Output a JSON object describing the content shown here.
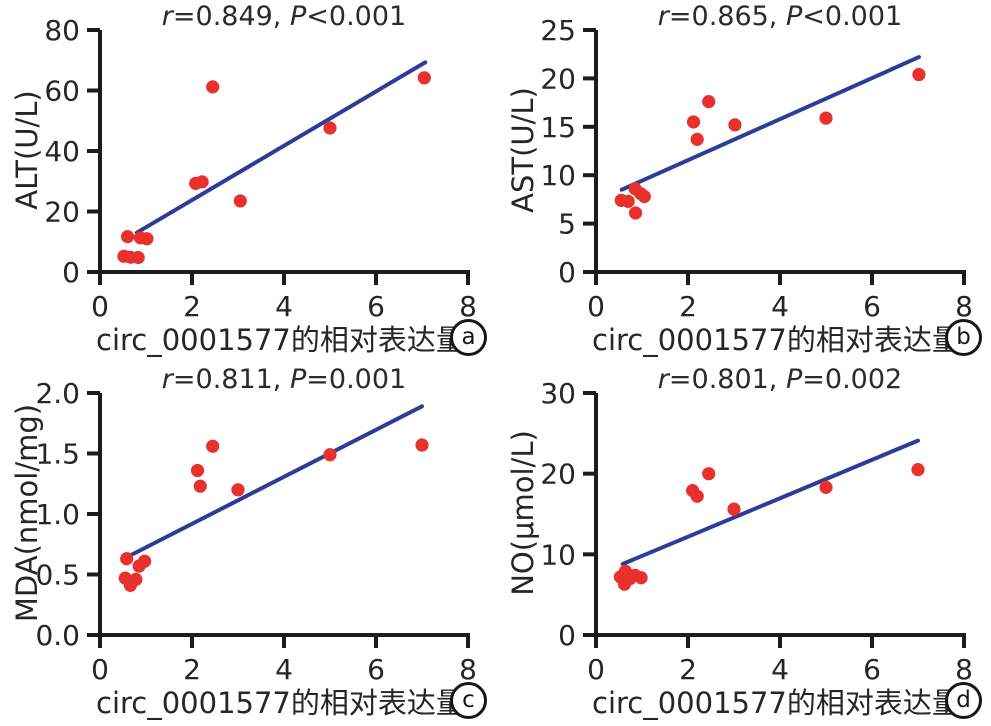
{
  "figure": {
    "background": "#ffffff",
    "x_axis_label_shared": "circ_0001577的相对表达量"
  },
  "colors": {
    "point": "#e8312d",
    "trend_line": "#2b3d98",
    "axis": "#1c1c1c",
    "text": "#262626"
  },
  "chart_data": [
    {
      "type": "scatter",
      "panel_label": "a",
      "title": {
        "var1": "r",
        "val1": "=0.849, ",
        "var2": "P",
        "val2": "<0.001"
      },
      "title_text": "r=0.849, P<0.001",
      "xlabel": "circ_0001577的相对表达量",
      "ylabel": "ALT(U/L)",
      "xlim": [
        0,
        8
      ],
      "ylim": [
        0,
        80
      ],
      "xticks": [
        "0",
        "2",
        "4",
        "6",
        "8"
      ],
      "yticks": [
        "0",
        "20",
        "40",
        "60",
        "80"
      ],
      "points": [
        [
          0.52,
          5.2
        ],
        [
          0.66,
          4.9
        ],
        [
          0.83,
          4.8
        ],
        [
          0.6,
          11.7
        ],
        [
          0.88,
          11.3
        ],
        [
          1.02,
          11.0
        ],
        [
          2.08,
          29.3
        ],
        [
          2.22,
          29.8
        ],
        [
          2.45,
          61.2
        ],
        [
          3.05,
          23.5
        ],
        [
          5.0,
          47.6
        ],
        [
          7.05,
          64.2
        ]
      ],
      "trendline": {
        "x1": 0.8,
        "y1": 13.0,
        "x2": 7.07,
        "y2": 69.3
      },
      "legend": "none",
      "grid": false
    },
    {
      "type": "scatter",
      "panel_label": "b",
      "title": {
        "var1": "r",
        "val1": "=0.865, ",
        "var2": "P",
        "val2": "<0.001"
      },
      "title_text": "r=0.865, P<0.001",
      "xlabel": "circ_0001577的相对表达量",
      "ylabel": "AST(U/L)",
      "xlim": [
        0,
        8
      ],
      "ylim": [
        0,
        25
      ],
      "xticks": [
        "0",
        "2",
        "4",
        "6",
        "8"
      ],
      "yticks": [
        "0",
        "5",
        "10",
        "15",
        "20",
        "25"
      ],
      "points": [
        [
          0.55,
          7.4
        ],
        [
          0.7,
          7.3
        ],
        [
          0.85,
          8.6
        ],
        [
          0.97,
          8.1
        ],
        [
          1.05,
          7.8
        ],
        [
          0.86,
          6.1
        ],
        [
          2.12,
          15.5
        ],
        [
          2.2,
          13.7
        ],
        [
          2.45,
          17.6
        ],
        [
          3.02,
          15.2
        ],
        [
          5.0,
          15.9
        ],
        [
          7.02,
          20.4
        ]
      ],
      "trendline": {
        "x1": 0.56,
        "y1": 8.5,
        "x2": 7.02,
        "y2": 22.2
      },
      "legend": "none",
      "grid": false
    },
    {
      "type": "scatter",
      "panel_label": "c",
      "title": {
        "var1": "r",
        "val1": "=0.811, ",
        "var2": "P",
        "val2": "=0.001"
      },
      "title_text": "r=0.811, P=0.001",
      "xlabel": "circ_0001577的相对表达量",
      "ylabel": "MDA(nmol/mg)",
      "xlim": [
        0,
        8
      ],
      "ylim": [
        0,
        2
      ],
      "xticks": [
        "0",
        "2",
        "4",
        "6",
        "8"
      ],
      "yticks": [
        "0.0",
        "0.5",
        "1.0",
        "1.5",
        "2.0"
      ],
      "points": [
        [
          0.58,
          0.63
        ],
        [
          0.85,
          0.57
        ],
        [
          0.97,
          0.61
        ],
        [
          0.55,
          0.47
        ],
        [
          0.66,
          0.41
        ],
        [
          0.78,
          0.46
        ],
        [
          2.12,
          1.36
        ],
        [
          2.18,
          1.23
        ],
        [
          2.45,
          1.56
        ],
        [
          3.0,
          1.2
        ],
        [
          5.0,
          1.49
        ],
        [
          7.0,
          1.57
        ]
      ],
      "trendline": {
        "x1": 0.67,
        "y1": 0.66,
        "x2": 7.0,
        "y2": 1.89
      },
      "legend": "none",
      "grid": false
    },
    {
      "type": "scatter",
      "panel_label": "d",
      "title": {
        "var1": "r",
        "val1": "=0.801, ",
        "var2": "P",
        "val2": "=0.002"
      },
      "title_text": "r=0.801, P=0.002",
      "xlabel": "circ_0001577的相对表达量",
      "ylabel": "NO(μmol/L)",
      "xlim": [
        0,
        8
      ],
      "ylim": [
        0,
        30
      ],
      "xticks": [
        "0",
        "2",
        "4",
        "6",
        "8"
      ],
      "yticks": [
        "0",
        "10",
        "20",
        "30"
      ],
      "points": [
        [
          0.53,
          7.2
        ],
        [
          0.64,
          7.9
        ],
        [
          0.74,
          7.0
        ],
        [
          0.85,
          7.4
        ],
        [
          0.98,
          7.1
        ],
        [
          0.62,
          6.3
        ],
        [
          2.1,
          17.9
        ],
        [
          2.2,
          17.2
        ],
        [
          2.45,
          20.0
        ],
        [
          3.0,
          15.6
        ],
        [
          5.0,
          18.3
        ],
        [
          7.0,
          20.5
        ]
      ],
      "trendline": {
        "x1": 0.58,
        "y1": 8.8,
        "x2": 7.0,
        "y2": 24.1
      },
      "legend": "none",
      "grid": false
    }
  ]
}
